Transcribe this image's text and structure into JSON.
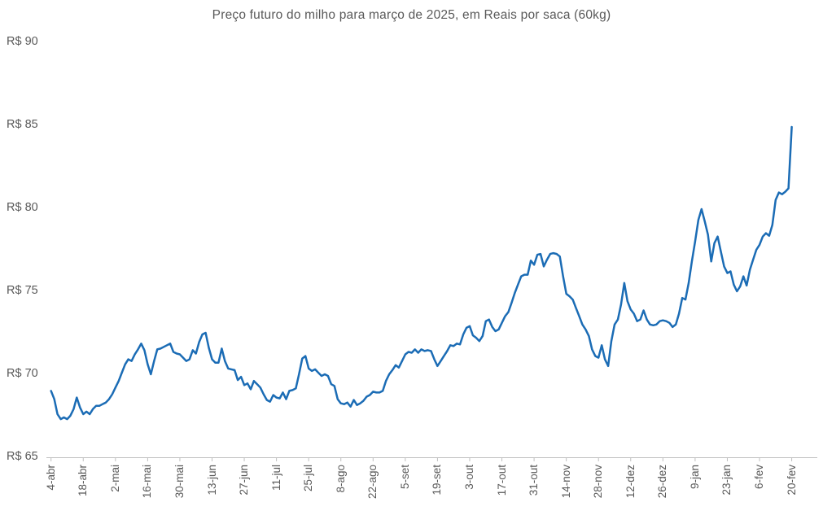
{
  "chart_data": {
    "type": "line",
    "title": "Preço futuro do milho para março de 2025, em Reais por saca (60kg)",
    "currency_prefix": "R$",
    "line_color": "#1b6cb5",
    "axis_color": "#bfbfbf",
    "text_color": "#595959",
    "grid": "none",
    "legend": "none",
    "ylim": [
      65,
      90
    ],
    "y_ticks": [
      90,
      85,
      80,
      75,
      70,
      65
    ],
    "y_tick_labels": [
      "R$ 90",
      "R$ 85",
      "R$ 80",
      "R$ 75",
      "R$ 70",
      "R$ 65"
    ],
    "x_tick_labels": [
      "4-abr",
      "18-abr",
      "2-mai",
      "16-mai",
      "30-mai",
      "13-jun",
      "27-jun",
      "11-jul",
      "25-jul",
      "8-ago",
      "22-ago",
      "5-set",
      "19-set",
      "3-out",
      "17-out",
      "31-out",
      "14-nov",
      "28-nov",
      "12-dez",
      "26-dez",
      "9-jan",
      "23-jan",
      "6-fev",
      "20-fev"
    ],
    "x_tick_interval_points": 10,
    "values": [
      69.0,
      68.5,
      67.6,
      67.3,
      67.4,
      67.3,
      67.5,
      67.9,
      68.6,
      68.0,
      67.6,
      67.75,
      67.6,
      67.9,
      68.1,
      68.1,
      68.2,
      68.3,
      68.5,
      68.8,
      69.2,
      69.6,
      70.1,
      70.6,
      70.9,
      70.8,
      71.2,
      71.5,
      71.85,
      71.45,
      70.6,
      70.0,
      70.8,
      71.5,
      71.55,
      71.65,
      71.75,
      71.85,
      71.35,
      71.25,
      71.2,
      71.0,
      70.8,
      70.9,
      71.45,
      71.25,
      71.95,
      72.4,
      72.5,
      71.6,
      70.9,
      70.7,
      70.7,
      71.55,
      70.8,
      70.35,
      70.3,
      70.25,
      69.65,
      69.85,
      69.35,
      69.45,
      69.1,
      69.6,
      69.4,
      69.2,
      68.8,
      68.45,
      68.35,
      68.75,
      68.6,
      68.55,
      68.9,
      68.5,
      69.0,
      69.05,
      69.15,
      70.0,
      70.95,
      71.1,
      70.35,
      70.2,
      70.3,
      70.1,
      69.9,
      70.0,
      69.9,
      69.4,
      69.3,
      68.5,
      68.25,
      68.2,
      68.3,
      68.05,
      68.45,
      68.15,
      68.25,
      68.4,
      68.65,
      68.75,
      68.95,
      68.9,
      68.9,
      69.0,
      69.6,
      70.0,
      70.25,
      70.55,
      70.4,
      70.8,
      71.2,
      71.35,
      71.3,
      71.5,
      71.3,
      71.5,
      71.4,
      71.45,
      71.4,
      70.9,
      70.5,
      70.8,
      71.1,
      71.4,
      71.75,
      71.7,
      71.85,
      71.8,
      72.4,
      72.8,
      72.9,
      72.35,
      72.2,
      72.0,
      72.3,
      73.2,
      73.3,
      72.85,
      72.6,
      72.7,
      73.1,
      73.5,
      73.75,
      74.3,
      74.9,
      75.4,
      75.9,
      76.0,
      76.0,
      76.85,
      76.6,
      77.2,
      77.25,
      76.5,
      76.9,
      77.25,
      77.3,
      77.25,
      77.1,
      75.9,
      74.85,
      74.7,
      74.5,
      74.0,
      73.5,
      73.0,
      72.7,
      72.3,
      71.5,
      71.1,
      71.0,
      71.75,
      70.9,
      70.5,
      72.0,
      73.0,
      73.3,
      74.2,
      75.5,
      74.4,
      73.9,
      73.65,
      73.2,
      73.3,
      73.85,
      73.3,
      73.0,
      72.95,
      73.0,
      73.2,
      73.25,
      73.2,
      73.1,
      72.85,
      73.0,
      73.65,
      74.6,
      74.5,
      75.5,
      76.8,
      78.0,
      79.3,
      79.95,
      79.2,
      78.4,
      76.8,
      77.9,
      78.3,
      77.4,
      76.5,
      76.1,
      76.2,
      75.4,
      75.0,
      75.3,
      75.9,
      75.35,
      76.3,
      76.9,
      77.5,
      77.8,
      78.3,
      78.5,
      78.35,
      79.0,
      80.5,
      80.95,
      80.85,
      81.0,
      81.2,
      84.9
    ]
  }
}
